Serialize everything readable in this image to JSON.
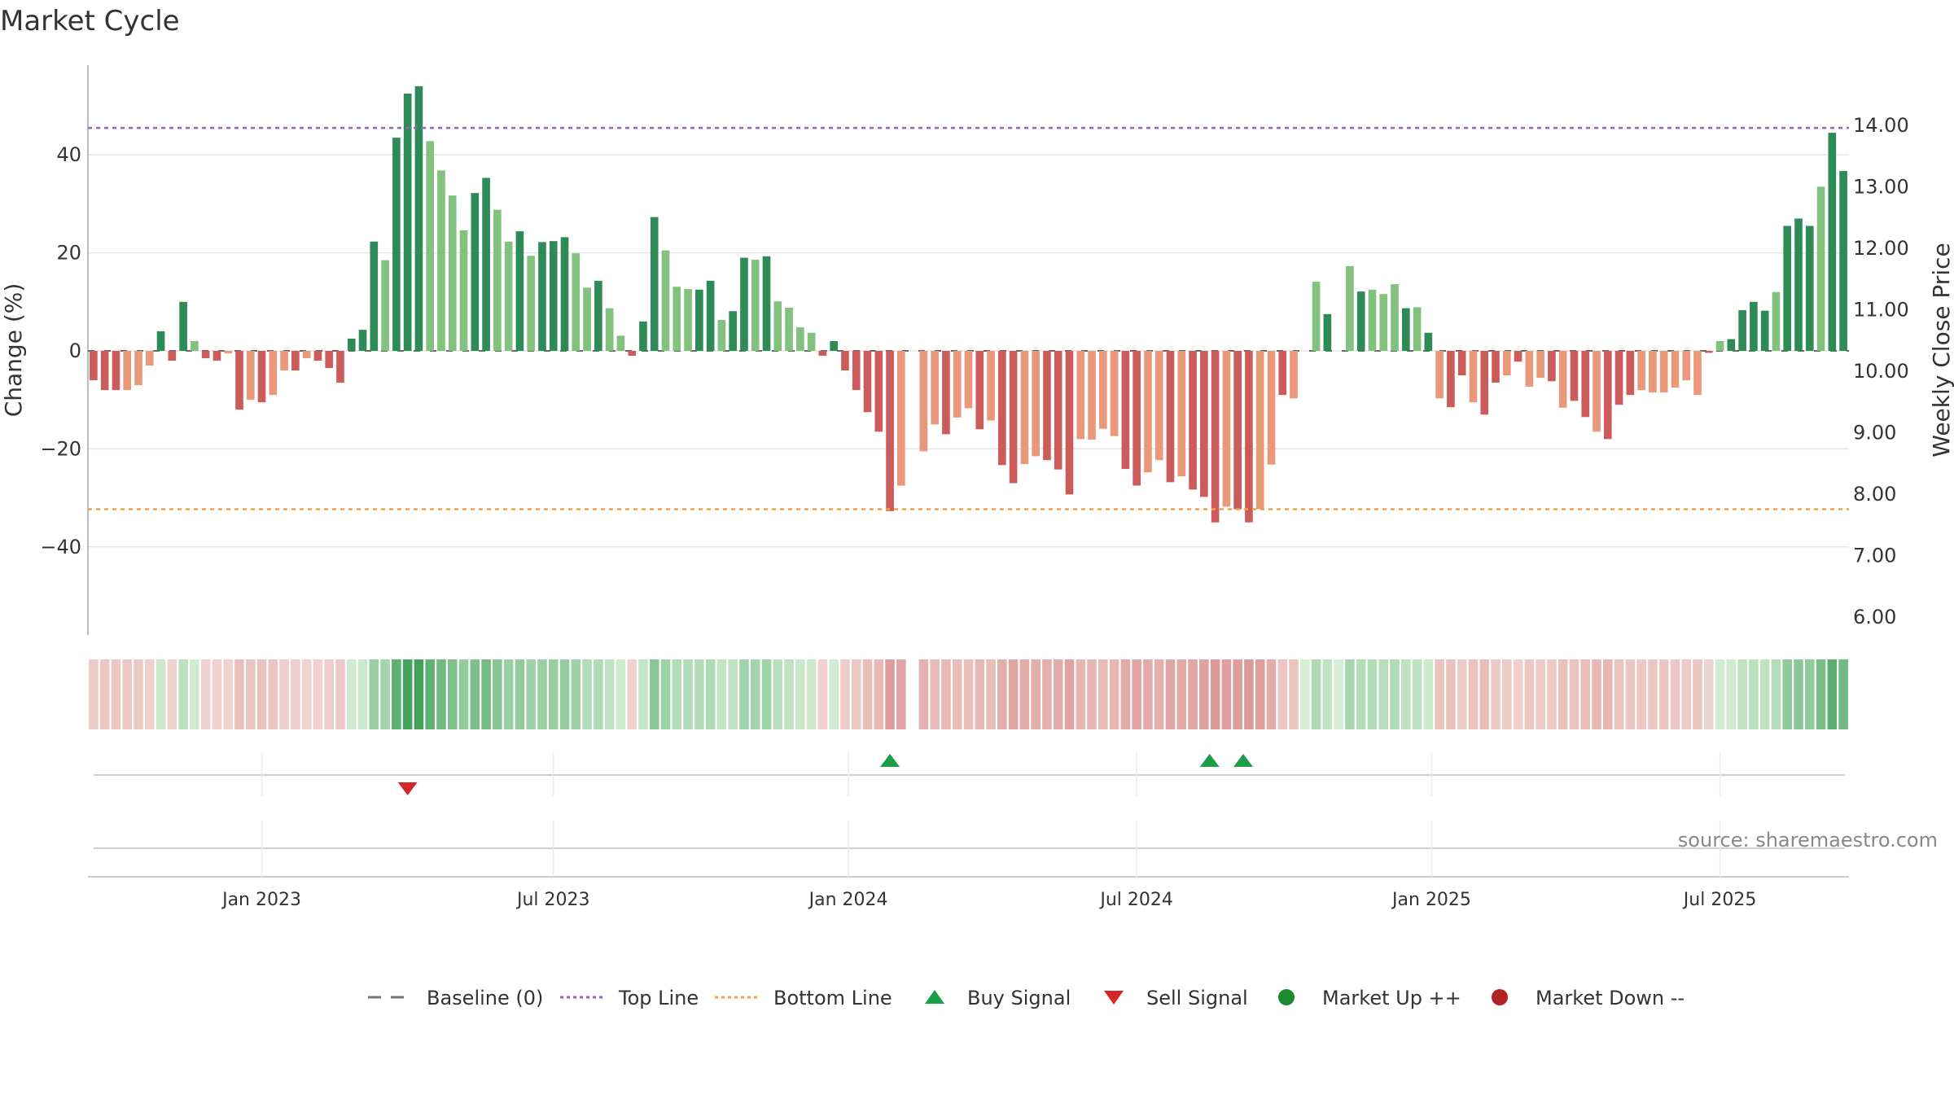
{
  "title": "Market Cycle",
  "source": "source: sharemaestro.com",
  "legend": [
    {
      "label": "Baseline (0)",
      "kind": "dash",
      "color": "#777777"
    },
    {
      "label": "Top Line",
      "kind": "dot",
      "color": "#9467bd"
    },
    {
      "label": "Bottom Line",
      "kind": "dot",
      "color": "#f0a04b"
    },
    {
      "label": "Buy Signal",
      "kind": "tri-up",
      "color": "#1a9e4a"
    },
    {
      "label": "Sell Signal",
      "kind": "tri-down",
      "color": "#d62728"
    },
    {
      "label": "Market Up ++",
      "kind": "dot-marker",
      "color": "#1e8a2f"
    },
    {
      "label": "Market Down --",
      "kind": "dot-marker",
      "color": "#b22222"
    }
  ],
  "chart_data": {
    "type": "bar",
    "title": "Market Cycle",
    "ylabel": "Change (%)",
    "y2label": "Weekly Close Price",
    "ylim": [
      -58,
      58
    ],
    "y_ticks": [
      "40",
      "20",
      "0",
      "−20",
      "−40"
    ],
    "y_tick_values": [
      40,
      20,
      0,
      -20,
      -40
    ],
    "y2lim": [
      5.5,
      14.6
    ],
    "y2_ticks": [
      "14.00",
      "13.00",
      "12.00",
      "11.00",
      "10.00",
      "9.00",
      "8.00",
      "7.00",
      "6.00"
    ],
    "y2_tick_values": [
      14,
      13,
      12,
      11,
      10,
      9,
      8,
      7,
      6
    ],
    "top_line": 45.5,
    "bottom_line": -32.3,
    "x_ticks": [
      "Jan 2023",
      "Jul 2023",
      "Jan 2024",
      "Jul 2024",
      "Jan 2025",
      "Jul 2025"
    ],
    "x_tick_index": [
      15,
      41,
      67.3,
      93,
      119.3,
      145
    ],
    "grid": true,
    "legend_position": "bottom",
    "weekly_change": [
      -6,
      -8,
      -8,
      -8,
      -7,
      -3,
      4,
      -2,
      10,
      2,
      -1.5,
      -2,
      -0.5,
      -12,
      -10,
      -10.5,
      -9,
      -4,
      -4,
      -1.5,
      -2,
      -3.5,
      -6.5,
      2.5,
      4.3,
      22.3,
      18.5,
      43.5,
      52.5,
      54,
      42.8,
      36.8,
      31.7,
      24.6,
      32.2,
      35.3,
      28.8,
      22.3,
      24.4,
      19.4,
      22.2,
      22.4,
      23.2,
      19.9,
      12.9,
      14.3,
      8.7,
      3.1,
      -1,
      6,
      27.3,
      20.5,
      13.1,
      12.6,
      12.5,
      14.3,
      6.3,
      8.1,
      19,
      18.6,
      19.3,
      10.1,
      8.8,
      4.8,
      3.7,
      -1,
      2,
      -4,
      -8,
      -12.5,
      -16.5,
      -32.7,
      -27.5,
      0,
      -20.5,
      -15,
      -17,
      -13.6,
      -11.7,
      -16,
      -14.2,
      -23.3,
      -27,
      -23.1,
      -21.5,
      -22.3,
      -24.2,
      -29.3,
      -18,
      -18.1,
      -15.9,
      -17.4,
      -24.1,
      -27.5,
      -24.8,
      -22.3,
      -26.8,
      -25.6,
      -28.3,
      -29.8,
      -35,
      -31.8,
      -32.3,
      -35,
      -32.3,
      -23.2,
      -9,
      -9.7,
      0,
      14.1,
      7.5,
      0,
      17.3,
      12.1,
      12.5,
      11.6,
      13.6,
      8.7,
      8.9,
      3.7,
      -9.7,
      -11.5,
      -5,
      -10.5,
      -13,
      -6.5,
      -5,
      -2.2,
      -7.3,
      -5.5,
      -6.2,
      -11.6,
      -10.2,
      -13.5,
      -16.5,
      -18,
      -11,
      -9,
      -8,
      -8.5,
      -8.5,
      -7.5,
      -6,
      -9,
      -0.4,
      2,
      2.4,
      8.3,
      10,
      8.2,
      12,
      25.5,
      27,
      25.5,
      33.5,
      44.5,
      36.7
    ],
    "bar_tone": [
      1,
      1,
      1,
      0,
      0,
      0,
      1,
      1,
      1,
      0,
      1,
      1,
      0,
      1,
      0,
      1,
      0,
      0,
      1,
      0,
      1,
      1,
      1,
      1,
      1,
      1,
      0,
      1,
      1,
      1,
      0,
      0,
      0,
      0,
      1,
      1,
      0,
      0,
      1,
      0,
      1,
      1,
      1,
      0,
      0,
      1,
      0,
      0,
      1,
      1,
      1,
      0,
      0,
      0,
      1,
      1,
      0,
      1,
      1,
      0,
      1,
      0,
      0,
      0,
      0,
      1,
      1,
      1,
      1,
      1,
      1,
      1,
      0,
      0,
      0,
      0,
      1,
      0,
      0,
      1,
      0,
      1,
      1,
      0,
      0,
      1,
      1,
      1,
      0,
      0,
      0,
      0,
      1,
      1,
      0,
      0,
      1,
      0,
      1,
      1,
      1,
      0,
      1,
      1,
      0,
      0,
      1,
      0,
      0,
      0,
      1,
      0,
      0,
      1,
      0,
      0,
      0,
      1,
      0,
      1,
      0,
      1,
      1,
      0,
      1,
      1,
      0,
      1,
      0,
      0,
      1,
      0,
      1,
      1,
      0,
      1,
      1,
      1,
      0,
      0,
      0,
      0,
      0,
      0,
      1,
      0,
      1,
      1,
      1,
      1,
      0,
      1,
      1,
      1,
      0,
      1,
      1,
      0
    ],
    "buy_signals_index": [
      71,
      99.5,
      102.5
    ],
    "sell_signals_index": [
      28
    ]
  }
}
